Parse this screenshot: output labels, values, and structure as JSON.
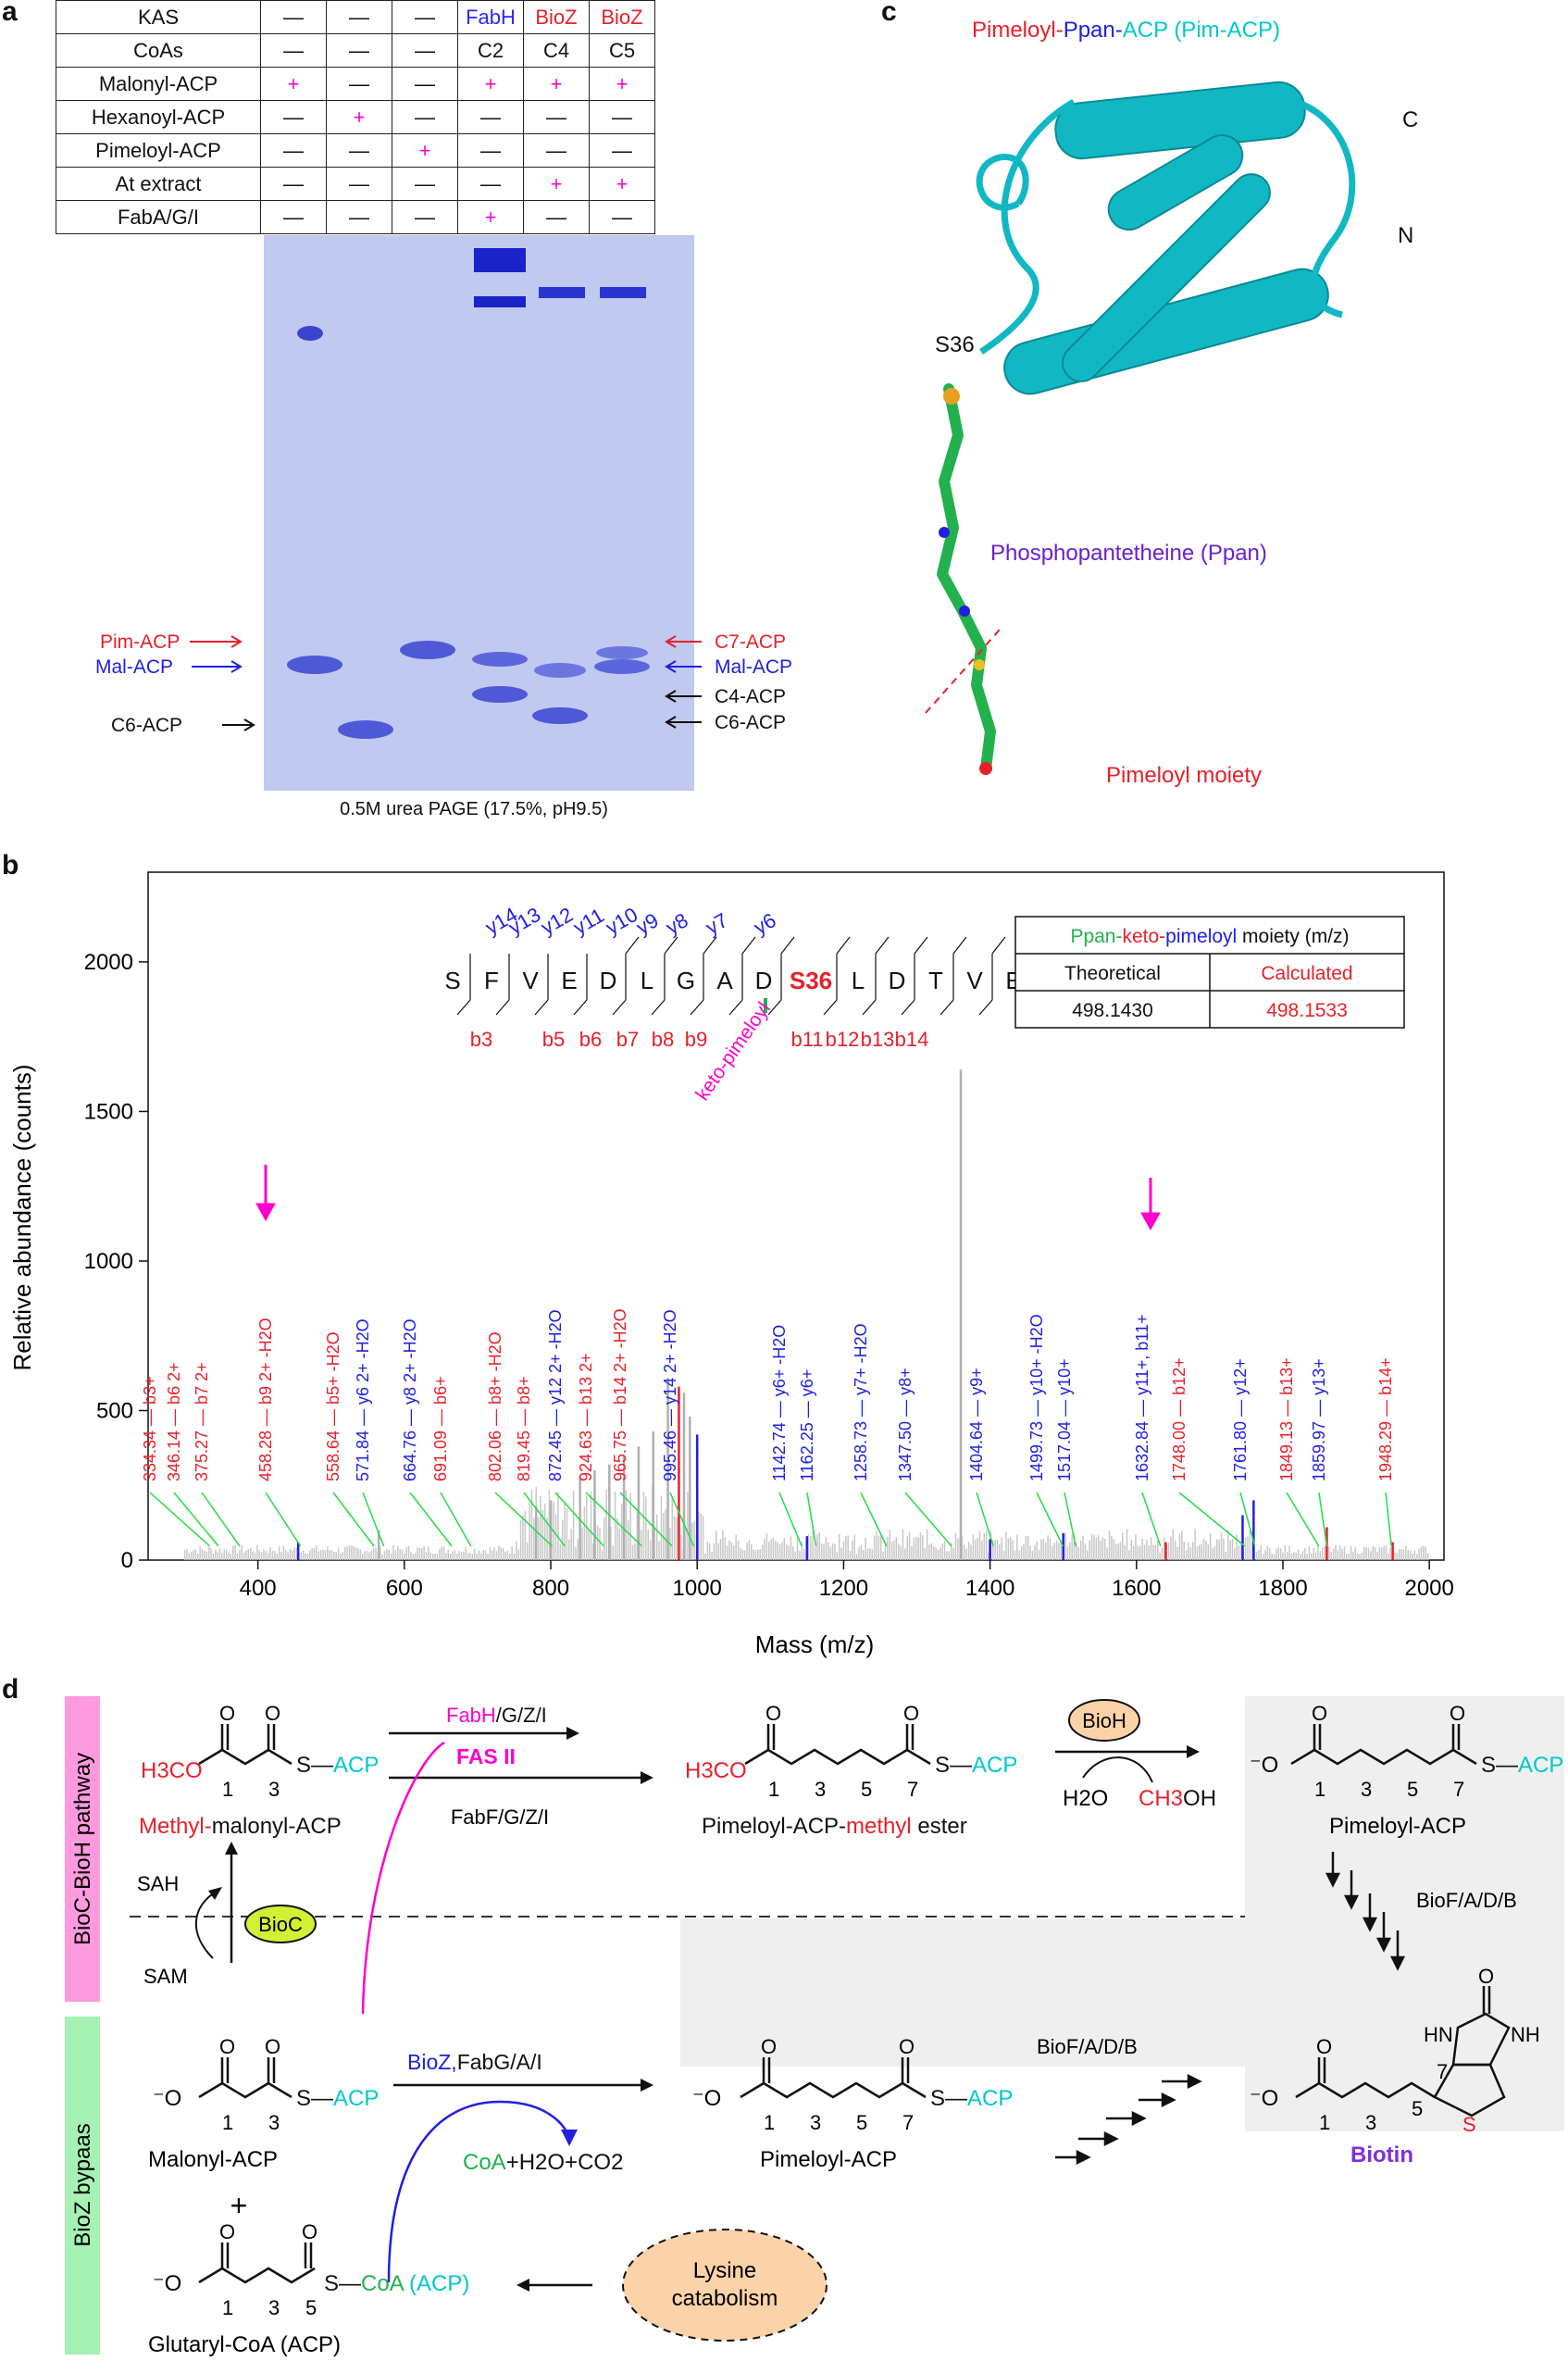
{
  "panels": {
    "a": "a",
    "b": "b",
    "c": "c",
    "d": "d"
  },
  "panel_a": {
    "table_rows": [
      {
        "label": "KAS",
        "cells": [
          "—",
          "—",
          "—",
          "FabH",
          "BioZ",
          "BioZ"
        ],
        "colors": [
          "#111",
          "#111",
          "#111",
          "#2a2aff",
          "#e8202a",
          "#e8202a"
        ]
      },
      {
        "label": "CoAs",
        "cells": [
          "—",
          "—",
          "—",
          "C2",
          "C4",
          "C5"
        ],
        "colors": [
          "#111",
          "#111",
          "#111",
          "#111",
          "#111",
          "#111"
        ]
      },
      {
        "label": "Malonyl-ACP",
        "cells": [
          "+",
          "—",
          "—",
          "+",
          "+",
          "+"
        ],
        "colors": [
          "#ff00cc",
          "#111",
          "#111",
          "#ff00cc",
          "#ff00cc",
          "#ff00cc"
        ]
      },
      {
        "label": "Hexanoyl-ACP",
        "cells": [
          "—",
          "+",
          "—",
          "—",
          "—",
          "—"
        ],
        "colors": [
          "#111",
          "#ff00cc",
          "#111",
          "#111",
          "#111",
          "#111"
        ]
      },
      {
        "label": "Pimeloyl-ACP",
        "cells": [
          "—",
          "—",
          "+",
          "—",
          "—",
          "—"
        ],
        "colors": [
          "#111",
          "#111",
          "#ff00cc",
          "#111",
          "#111",
          "#111"
        ]
      },
      {
        "label": "At extract",
        "cells": [
          "—",
          "—",
          "—",
          "—",
          "+",
          "+"
        ],
        "colors": [
          "#111",
          "#111",
          "#111",
          "#111",
          "#ff00cc",
          "#ff00cc"
        ]
      },
      {
        "label": "FabA/G/I",
        "cells": [
          "—",
          "—",
          "—",
          "+",
          "—",
          "—"
        ],
        "colors": [
          "#111",
          "#111",
          "#111",
          "#ff00cc",
          "#111",
          "#111"
        ]
      }
    ],
    "left_labels": [
      "Pim-ACP",
      "Mal-ACP",
      "C6-ACP"
    ],
    "right_labels": [
      "C7-ACP",
      "Mal-ACP",
      "C4-ACP",
      "C6-ACP"
    ],
    "gel_caption": "0.5M urea PAGE (17.5%, pH9.5)"
  },
  "panel_c": {
    "title_parts": [
      "Pimeloyl-",
      "Ppan-",
      "ACP (Pim-ACP)"
    ],
    "label_c": "C",
    "label_n": "N",
    "label_s36": "S36",
    "ppan_label": "Phosphopantetheine (Ppan)",
    "moiety_label": "Pimeloyl moiety"
  },
  "panel_b": {
    "sequence": [
      "S",
      "F",
      "V",
      "E",
      "D",
      "L",
      "G",
      "A",
      "D",
      "S36",
      "L",
      "D",
      "T",
      "V",
      "E"
    ],
    "y_ions": [
      "y14",
      "y13",
      "y12",
      "y11",
      "y10",
      "y9",
      "y8",
      "y7",
      "y6"
    ],
    "b_ions": [
      "b3",
      "b5",
      "b6",
      "b7",
      "b8",
      "b9",
      "b11",
      "b12",
      "b13",
      "b14"
    ],
    "keto_label": "keto-pimeloyl",
    "mass_table": {
      "title_parts": [
        "Ppan-",
        "keto-",
        "pimeloyl",
        " moiety (m/z)"
      ],
      "headers": [
        "Theoretical",
        "Calculated"
      ],
      "values": [
        "498.1430",
        "498.1533"
      ]
    }
  },
  "chart_data": {
    "type": "bar",
    "title": "",
    "xlabel": "Mass (m/z)",
    "ylabel": "Relative abundance (counts)",
    "xlim": [
      300,
      2000
    ],
    "ylim": [
      0,
      2300
    ],
    "x_ticks": [
      400,
      600,
      800,
      1000,
      1200,
      1400,
      1600,
      1800,
      2000
    ],
    "y_ticks": [
      0,
      500,
      1000,
      1500,
      2000
    ],
    "annotations": [
      {
        "mz": 334.34,
        "label": "334.34 — b3+",
        "color": "#e8202a"
      },
      {
        "mz": 346.14,
        "label": "346.14 — b6 2+",
        "color": "#e8202a"
      },
      {
        "mz": 375.27,
        "label": "375.27 — b7 2+",
        "color": "#e8202a"
      },
      {
        "mz": 458.28,
        "label": "458.28 — b9 2+ -H2O",
        "color": "#e8202a"
      },
      {
        "mz": 558.64,
        "label": "558.64 — b5+ -H2O",
        "color": "#e8202a"
      },
      {
        "mz": 571.84,
        "label": "571.84 — y6 2+ -H2O",
        "color": "#2020e0"
      },
      {
        "mz": 664.76,
        "label": "664.76 — y8 2+ -H2O",
        "color": "#2020e0"
      },
      {
        "mz": 691.09,
        "label": "691.09 — b6+",
        "color": "#e8202a"
      },
      {
        "mz": 802.06,
        "label": "802.06 — b8+ -H2O",
        "color": "#e8202a"
      },
      {
        "mz": 819.45,
        "label": "819.45 — b8+",
        "color": "#e8202a"
      },
      {
        "mz": 872.45,
        "label": "872.45 — y12 2+ -H2O",
        "color": "#2020e0"
      },
      {
        "mz": 924.63,
        "label": "924.63 — b13 2+",
        "color": "#e8202a"
      },
      {
        "mz": 965.75,
        "label": "965.75 — b14 2+ -H2O",
        "color": "#e8202a"
      },
      {
        "mz": 995.46,
        "label": "995.46 — y14 2+ -H2O",
        "color": "#2020e0"
      },
      {
        "mz": 1142.74,
        "label": "1142.74 — y6+ -H2O",
        "color": "#2020e0"
      },
      {
        "mz": 1162.25,
        "label": "1162.25 — y6+",
        "color": "#2020e0"
      },
      {
        "mz": 1258.73,
        "label": "1258.73 — y7+ -H2O",
        "color": "#2020e0"
      },
      {
        "mz": 1347.5,
        "label": "1347.50 — y8+",
        "color": "#2020e0"
      },
      {
        "mz": 1404.64,
        "label": "1404.64 — y9+",
        "color": "#2020e0"
      },
      {
        "mz": 1499.73,
        "label": "1499.73 — y10+ -H2O",
        "color": "#2020e0"
      },
      {
        "mz": 1517.04,
        "label": "1517.04 — y10+",
        "color": "#2020e0"
      },
      {
        "mz": 1632.84,
        "label": "1632.84 — y11+, b11+",
        "color": "#2020e0"
      },
      {
        "mz": 1748.0,
        "label": "1748.00 — b12+",
        "color": "#e8202a"
      },
      {
        "mz": 1761.8,
        "label": "1761.80 — y12+",
        "color": "#2020e0"
      },
      {
        "mz": 1849.13,
        "label": "1849.13 — b13+",
        "color": "#e8202a"
      },
      {
        "mz": 1859.97,
        "label": "1859.97 — y13+",
        "color": "#2020e0"
      },
      {
        "mz": 1948.29,
        "label": "1948.29 — b14+",
        "color": "#e8202a"
      }
    ],
    "peaks_major": [
      {
        "x": 960,
        "y": 610,
        "c": "gray"
      },
      {
        "x": 975,
        "y": 580,
        "c": "red"
      },
      {
        "x": 982,
        "y": 560,
        "c": "gray"
      },
      {
        "x": 990,
        "y": 480,
        "c": "gray"
      },
      {
        "x": 1000,
        "y": 420,
        "c": "blue"
      },
      {
        "x": 1360,
        "y": 1640,
        "c": "gray"
      },
      {
        "x": 940,
        "y": 430,
        "c": "gray"
      },
      {
        "x": 920,
        "y": 380,
        "c": "gray"
      },
      {
        "x": 900,
        "y": 350,
        "c": "gray"
      },
      {
        "x": 880,
        "y": 320,
        "c": "gray"
      },
      {
        "x": 860,
        "y": 300,
        "c": "gray"
      },
      {
        "x": 840,
        "y": 280,
        "c": "gray"
      },
      {
        "x": 1760,
        "y": 200,
        "c": "blue"
      },
      {
        "x": 1745,
        "y": 150,
        "c": "blue"
      },
      {
        "x": 1860,
        "y": 110,
        "c": "red"
      },
      {
        "x": 1950,
        "y": 60,
        "c": "red"
      },
      {
        "x": 800,
        "y": 200,
        "c": "gray"
      },
      {
        "x": 780,
        "y": 180,
        "c": "gray"
      },
      {
        "x": 1150,
        "y": 80,
        "c": "blue"
      },
      {
        "x": 1400,
        "y": 70,
        "c": "blue"
      },
      {
        "x": 1500,
        "y": 90,
        "c": "blue"
      },
      {
        "x": 1640,
        "y": 60,
        "c": "red"
      },
      {
        "x": 565,
        "y": 100,
        "c": "gray"
      },
      {
        "x": 455,
        "y": 60,
        "c": "blue"
      }
    ]
  },
  "panel_d": {
    "side_labels": [
      "BioC-BioH pathway",
      "BioZ bypaas"
    ],
    "top": {
      "h3co": "H3CO",
      "s_acp": "S—ACP",
      "methyl": "Methyl-",
      "malonyl_acp": "malonyl-ACP",
      "num1": "1",
      "num3": "3",
      "num5": "5",
      "num7": "7",
      "fabh": "FabH/G/Z/I",
      "fas2": "FAS II",
      "fabf": "FabF/G/Z/I",
      "pim_acp_a": "Pimeloyl-ACP-",
      "methyl2": "methyl",
      "ester": " ester",
      "bioh": "BioH",
      "h2o": "H2O",
      "ch3oh_a": "CH",
      "ch3oh_b": "3",
      "ch3oh_c": "OH",
      "pimeloyl_acp": "Pimeloyl-ACP",
      "acp": "ACP",
      "biofadb": "BioF/A/D/B",
      "sah": "SAH",
      "sam": "SAM",
      "bioc": "BioC",
      "o_minus": "⁻O"
    },
    "bottom": {
      "malonyl_acp": "Malonyl-ACP",
      "plus": "+",
      "bioz": "BioZ,",
      "fabga": "FabG/A/I",
      "coa_h2o": "CoA",
      "h2o_co2": "+H2O+CO2",
      "pimeloyl_acp": "Pimeloyl-ACP",
      "biofadb": "BioF/A/D/B",
      "glutaryl": "Glutaryl-CoA (ACP)",
      "s_coa": "S—",
      "coa": "CoA",
      "acp_paren": " (ACP)",
      "lysine": "Lysine",
      "catabolism": "catabolism",
      "biotin": "Biotin",
      "hn": "HN",
      "nh": "NH",
      "o": "O",
      "s": "S"
    }
  },
  "colors": {
    "red": "#e8202a",
    "blue": "#2020e0",
    "magenta": "#ff00cc",
    "cyan": "#00c8c8",
    "green": "#22b14c",
    "purple": "#8a2be2",
    "gel": "#b8c2ee"
  }
}
